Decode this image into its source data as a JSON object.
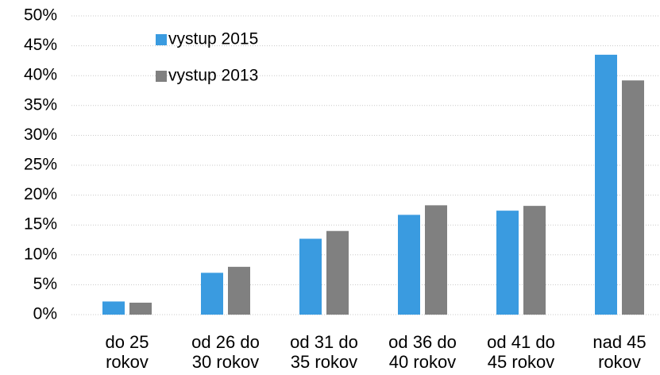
{
  "chart_data": {
    "type": "bar",
    "categories": [
      "do 25 rokov",
      "od 26 do 30 rokov",
      "od 31 do 35 rokov",
      "od 36 do 40 rokov",
      "od 41 do 45 rokov",
      "nad 45 rokov"
    ],
    "series": [
      {
        "name": "vystup 2015",
        "color": "#3a9be0",
        "values": [
          2.2,
          7.0,
          12.7,
          16.7,
          17.4,
          43.5
        ]
      },
      {
        "name": "vystup 2013",
        "color": "#808080",
        "values": [
          2.0,
          8.0,
          14.0,
          18.3,
          18.2,
          39.2
        ]
      }
    ],
    "ylim": [
      0,
      50
    ],
    "yticks": [
      {
        "value": 0,
        "label": "0%"
      },
      {
        "value": 5,
        "label": "5%"
      },
      {
        "value": 10,
        "label": "10%"
      },
      {
        "value": 15,
        "label": "15%"
      },
      {
        "value": 20,
        "label": "20%"
      },
      {
        "value": 25,
        "label": "25%"
      },
      {
        "value": 30,
        "label": "30%"
      },
      {
        "value": 35,
        "label": "35%"
      },
      {
        "value": 40,
        "label": "40%"
      },
      {
        "value": 45,
        "label": "45%"
      },
      {
        "value": 50,
        "label": "50%"
      }
    ],
    "grid": true,
    "legend": "top-left"
  }
}
